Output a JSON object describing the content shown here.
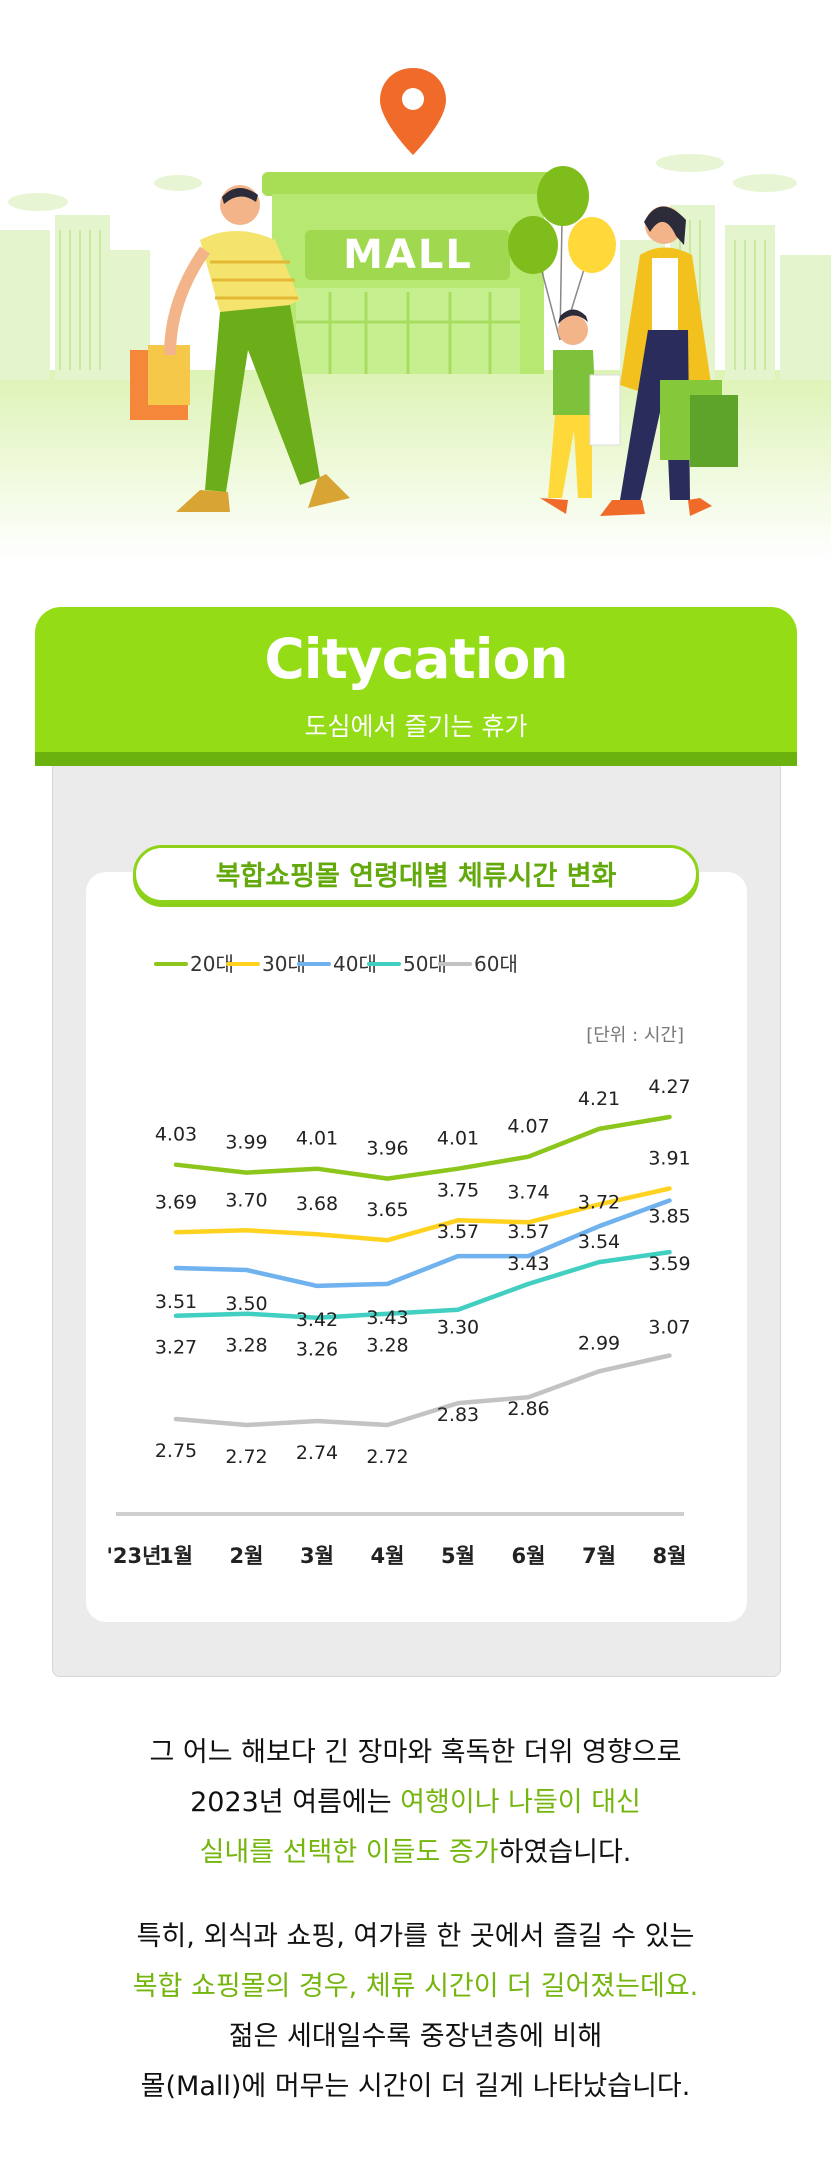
{
  "hero": {
    "mall_sign": "MALL"
  },
  "banner": {
    "title": "Citycation",
    "subtitle": "도심에서 즐기는 휴가"
  },
  "colors": {
    "brand_green": "#93dc16",
    "series_20": "#8cc61c",
    "series_30": "#ffd21f",
    "series_40": "#6fb2ee",
    "series_50": "#40cfc0",
    "series_60": "#c3c3c3"
  },
  "chart_data": {
    "type": "line",
    "title": "복합쇼핑몰 연령대별 체류시간 변화",
    "unit_label": "[단위 : 시간]",
    "year_label": "'23년",
    "categories": [
      "1월",
      "2월",
      "3월",
      "4월",
      "5월",
      "6월",
      "7월",
      "8월"
    ],
    "legend_position": "top",
    "grid": false,
    "series": [
      {
        "name": "20대",
        "color": "#8cc61c",
        "values": [
          4.03,
          3.99,
          4.01,
          3.96,
          4.01,
          4.07,
          4.21,
          4.27
        ]
      },
      {
        "name": "30대",
        "color": "#ffd21f",
        "values": [
          3.69,
          3.7,
          3.68,
          3.65,
          3.75,
          3.74,
          3.83,
          3.91
        ]
      },
      {
        "name": "40대",
        "color": "#6fb2ee",
        "values": [
          3.51,
          3.5,
          3.42,
          3.43,
          3.57,
          3.57,
          3.72,
          3.85
        ]
      },
      {
        "name": "50대",
        "color": "#40cfc0",
        "values": [
          3.27,
          3.28,
          3.26,
          3.28,
          3.3,
          3.43,
          3.54,
          3.59
        ]
      },
      {
        "name": "60대",
        "color": "#c3c3c3",
        "values": [
          2.75,
          2.72,
          2.74,
          2.72,
          2.83,
          2.86,
          2.99,
          3.07
        ]
      }
    ],
    "data_labels": [
      [
        "4.03",
        "3.99",
        "4.01",
        "3.96",
        "4.01",
        "4.07",
        "4.21",
        "4.27"
      ],
      [
        "3.69",
        "3.70",
        "3.68",
        "3.65",
        "3.75",
        "3.74",
        "",
        "3.91"
      ],
      [
        "3.51",
        "3.50",
        "3.42",
        "3.43",
        "3.57",
        "3.57",
        "3.72",
        "3.85"
      ],
      [
        "3.27",
        "3.28",
        "3.26",
        "3.28",
        "3.30",
        "3.43",
        "3.54",
        "3.59"
      ],
      [
        "2.75",
        "2.72",
        "2.74",
        "2.72",
        "2.83",
        "2.86",
        "2.99",
        "3.07"
      ]
    ]
  },
  "body_text": {
    "p1_line1": "그 어느 해보다 긴 장마와 혹독한 더위 영향으로",
    "p1_line2_a": "2023년 여름에는 ",
    "p1_line2_hl": "여행이나 나들이 대신",
    "p1_line3_hl": "실내를 선택한 이들도 증가",
    "p1_line3_b": "하였습니다.",
    "p2_line1": "특히, 외식과 쇼핑, 여가를 한 곳에서 즐길 수 있는",
    "p2_line2_hl": "복합 쇼핑몰의 경우, 체류 시간이 더 길어졌는데요.",
    "p2_line3": "젊은 세대일수록 중장년층에 비해",
    "p2_line4": "몰(Mall)에 머무는 시간이 더 길게 나타났습니다."
  }
}
